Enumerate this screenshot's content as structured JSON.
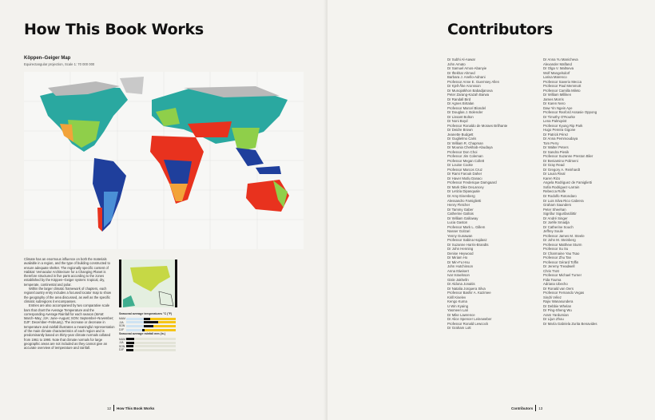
{
  "left_page": {
    "title": "How This Book Works",
    "map": {
      "title": "Köppen–Geiger Map",
      "subtitle": "Equirectangular projection, Scale 1: 70 000 000"
    },
    "body_paragraphs": [
      "Climate has an enormous influence on both the materials available in a region, and the type of building constructed to ensure adequate shelter. The regionally specific content of Habitat: Vernacular Architecture for a Changing Planet is therefore structured in five parts according to the zones established by the Köppen–Geiger system: tropical, dry, temperate, continental and polar.",
      "Within the larger climatic framework of chapters, each region/country entry includes a focused locator map to show the geography of the area discussed, as well as the specific climatic subregions it encompasses.",
      "Entries are also accompanied by two comparative scale bars that chart the Average Temperature and the corresponding Average Rainfall for each season (MAM: March–May; JJA: June–August; SON: September–November; DJF: December–February). The increase or decrease in temperature and rainfall illustrates a meaningful representation of the main climate characteristics of each region and is predominantly based on thirty-year climate normals collated from 1961 to 1990. Note that climate normals for large geographic areas are not included as they cannot give an accurate overview of temperature and rainfall."
    ],
    "legend": {
      "temp_title": "Seasonal average temperatures °C (°F)",
      "rain_title": "Seasonal average rainfall mm (in.)",
      "seasons": [
        "MAM",
        "JJA",
        "SON",
        "DJF"
      ]
    },
    "footer": {
      "page_number": "12",
      "section": "How This Book Works"
    }
  },
  "right_page": {
    "title": "Contributors",
    "column_1": [
      "Dr Subhi Al-Aawar",
      "John Amato",
      "Dr Samuel Amos-Abanyie",
      "Dr Iftekhar Ahmed",
      "Barbara J. Anello-Adnani",
      "Professor Anne E. Guernsey Allen",
      "Dr Kjell-Åke Aronsson",
      "Dr Munojatkhon Babadjanova",
      "Peter Zarang-Kazah Barwa",
      "Dr Randall Bird",
      "Dr Agnes Birtalan",
      "Professor Marcel Blondel",
      "Dr Douglas J. Bolender",
      "Dr Lissant Bolton",
      "Dr Noni Boyd",
      "Professor Ronaldo de Moraes Brilhante",
      "Dr Deidre Brown",
      "Jeanette Budgett",
      "Dr Guglielmo Caris",
      "Dr William R. Chapman",
      "Dr Mounia Chekhab-Abudaya",
      "Professor Don Choi",
      "Professor Jim Coleman",
      "Professor Megan Collett",
      "Dr Louise Cooke",
      "Professor Marcos Cruz",
      "Dr Rami Farouk Daher",
      "Dr Haver Mutlu Danacı",
      "Professor Frederique Damgaard",
      "Dr Mark Dike DeLancey",
      "Dr Letizia Dipasquale",
      "Dr Amy Eisenberg",
      "Alessandro Famiglietti",
      "Henry Fletcher",
      "Dr Tammy Gaber",
      "Catherine Gallois",
      "Dr William Galloway",
      "Lucia Gaston",
      "Professor Mark L. Gillem",
      "Nasser Golzari",
      "Yenny Gunawan",
      "Professor Sabina Hajdasz",
      "Dr Suzanne Harris-Brandts",
      "Dr John Henning",
      "Denise Heywood",
      "Dr Miriam Ho",
      "Dr Min-Fu Hsu",
      "John Hutchinson",
      "Anna Ittiwisert",
      "Ivar Israelsson",
      "Gisle Jakhelln",
      "Dr Aldona Jonaitis",
      "Dr Natalia Jorquera Silva",
      "Professor Bashir A. Kazimee",
      "Kirill Kiselev",
      "Kengo Kuma",
      "U Win Kyaing",
      "Yasmeen Lari",
      "Dr Mike Lawrence",
      "Dr Alice Spencer Leineweber",
      "Professor Ronald Lewcock",
      "Dr Graham Lott"
    ],
    "column_2": [
      "Dr Anna Yu Manicheva",
      "Alexander Mafland",
      "Dr Olga V. Maltseva",
      "Wolf Mangelsdorf",
      "Larisa Marenco",
      "Professor Saverio Mecca",
      "Professor Paul Memmott",
      "Professor Camilla Mileto",
      "Dr William Milliken",
      "James Morris",
      "Dr Karen Nero",
      "Daw Yin Ngein Aye",
      "Professor Rexford Assasie Oppong",
      "Dr Timothy O'Rourke",
      "Lena Palmqvist",
      "Professor Kyung Rip Park",
      "Hugo Pereira Gigone",
      "Dr Patrick Pérez",
      "Dr Anna Pemmoudaya",
      "Tom Perry",
      "Dr Walter Peters",
      "Dr Sandra Piesik",
      "Professor Suzanne Preston Blier",
      "Dr Beniamino Polimeni",
      "Dr Gray Read",
      "Dr Gregory A. Reinhardt",
      "Dr Laura Rival",
      "Karen Rizo",
      "Angela Rodriguez de Famiglietti",
      "Sofia Rodriguez-Larrain",
      "Rebecca Rolfe",
      "Dr Rodolfo Rotondaro",
      "Dr Luis Silva Rico Cabrera",
      "Graham Saunders",
      "Peter Sheehan",
      "Sigriður Sigurðardóttir",
      "Dr André Singer",
      "Dr Joëlle Smadja",
      "Dr Catherine Souch",
      "Jeffrey Soule",
      "Professor James M. Steele",
      "Dr John M. Steinberg",
      "Professor Matthew Sturm",
      "Professor Su Su",
      "Dr Charmaine Yau Tsao",
      "Professor Zhu Tan",
      "Professor Gérard Toffin",
      "Dr Jeremy Treadwell",
      "Chris Trott",
      "Professor Michael Turner",
      "Fida Touma",
      "Adriana Ubecho",
      "Dr Ronald van Oers",
      "Professor Fernando Vegas",
      "Sindri Vélez",
      "Rajiv Wanasundera",
      "Dr Debbie Whelan",
      "Dr Ping-Sheng Wu",
      "Aram Yardumian",
      "Dr Lijun Zhou",
      "Dr María Gabriela Zurita Benavides"
    ],
    "footer": {
      "section": "Contributors",
      "page_number": "13"
    }
  },
  "colors": {
    "tropical": "#1f3f9c",
    "tropical_savanna": "#4a8fd6",
    "desert": "#e8321e",
    "steppe": "#f2a33a",
    "temperate": "#8fcf4a",
    "continental": "#2aa8a0",
    "polar": "#b9b9b9",
    "highlight": "#f5c518"
  }
}
